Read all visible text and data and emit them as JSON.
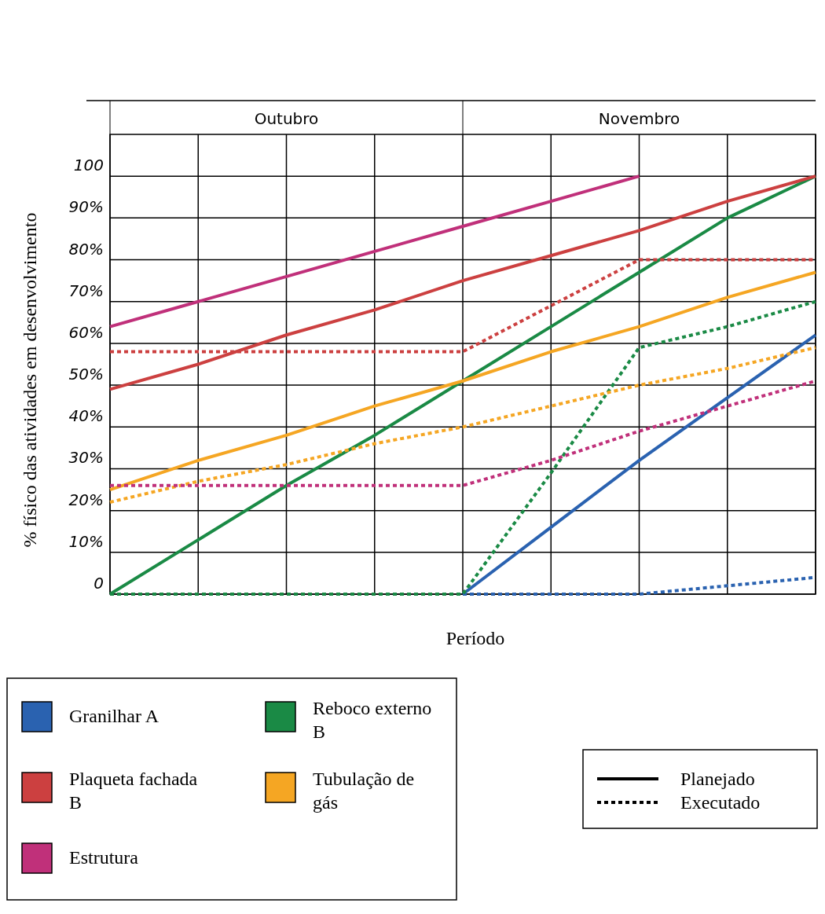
{
  "chart_data": {
    "type": "line",
    "xlabel": "Período",
    "ylabel": "% físico das atividades em desenvolvimento",
    "categories": [
      null,
      null,
      null,
      null,
      null,
      null,
      null,
      null,
      null
    ],
    "ylim": [
      0,
      110
    ],
    "yticks": [
      {
        "value": 0,
        "label": "0"
      },
      {
        "value": 10,
        "label": "10%"
      },
      {
        "value": 20,
        "label": "20%"
      },
      {
        "value": 30,
        "label": "30%"
      },
      {
        "value": 40,
        "label": "40%"
      },
      {
        "value": 50,
        "label": "50%"
      },
      {
        "value": 60,
        "label": "60%"
      },
      {
        "value": 70,
        "label": "70%"
      },
      {
        "value": 80,
        "label": "80%"
      },
      {
        "value": 90,
        "label": "90%"
      },
      {
        "value": 100,
        "label": "100"
      }
    ],
    "grid": true,
    "legend": "bottom",
    "annotations": [
      "Outubro",
      "Novembro",
      "Planejado",
      "Executado"
    ],
    "series": [
      {
        "name": "Granilhar A",
        "color": "#2a62b0",
        "line_style": "solid",
        "values": [
          null,
          null,
          null,
          null,
          0,
          16,
          32,
          47,
          62
        ]
      },
      {
        "color": "#2a62b0",
        "line_style": "dotted",
        "values": [
          null,
          null,
          null,
          null,
          0,
          0,
          0,
          2,
          4
        ]
      },
      {
        "name": "Reboco externo B",
        "color": "#1a8a45",
        "line_style": "solid",
        "values": [
          0,
          13,
          26,
          38,
          51,
          64,
          77,
          90,
          100
        ]
      },
      {
        "color": "#1a8a45",
        "line_style": "dotted",
        "values": [
          0,
          0,
          0,
          0,
          0,
          29,
          59,
          64,
          70
        ]
      },
      {
        "name": "Plaqueta fachada B",
        "color": "#cc4040",
        "line_style": "solid",
        "values": [
          49,
          55,
          62,
          68,
          75,
          81,
          87,
          94,
          100
        ]
      },
      {
        "color": "#cc4040",
        "line_style": "dotted",
        "values": [
          58,
          58,
          58,
          58,
          58,
          69,
          80,
          80,
          80
        ]
      },
      {
        "name": "Tubulação de gás",
        "color": "#f5a623",
        "line_style": "solid",
        "values": [
          25,
          32,
          38,
          45,
          51,
          58,
          64,
          71,
          77
        ]
      },
      {
        "color": "#f5a623",
        "line_style": "dotted",
        "values": [
          22,
          27,
          31,
          36,
          40,
          45,
          50,
          54,
          59
        ]
      },
      {
        "name": "Estrutura",
        "color": "#c0307a",
        "line_style": "solid",
        "values": [
          64,
          70,
          76,
          82,
          88,
          94,
          100,
          null,
          null
        ]
      },
      {
        "color": "#c0307a",
        "line_style": "dotted",
        "values": [
          26,
          26,
          26,
          26,
          26,
          32,
          39,
          45,
          51
        ]
      }
    ]
  }
}
